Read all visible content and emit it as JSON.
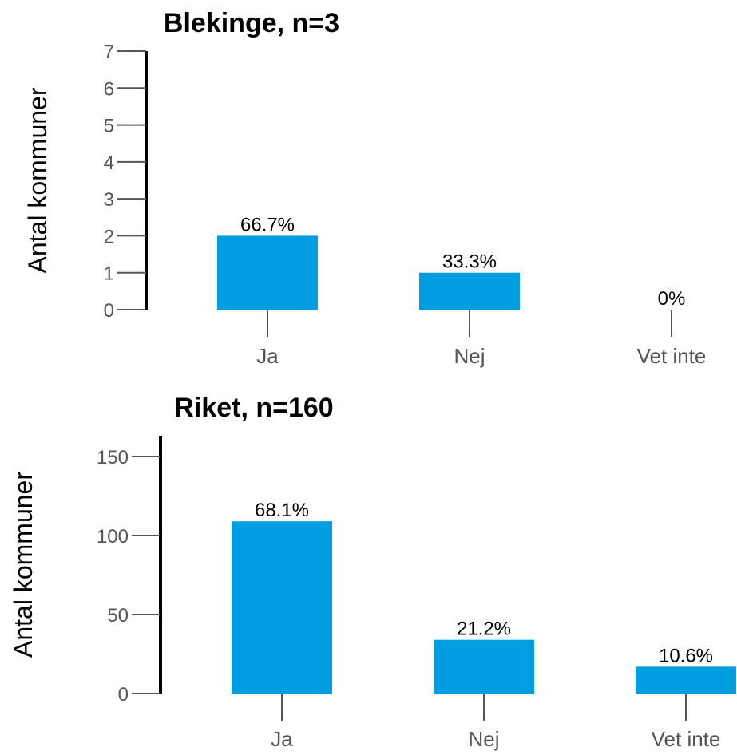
{
  "chart_data": [
    {
      "type": "bar",
      "title": "Blekinge, n=3",
      "ylabel": "Antal kommuner",
      "xlabel": "",
      "categories": [
        "Ja",
        "Nej",
        "Vet inte"
      ],
      "values": [
        2,
        1,
        0
      ],
      "data_labels": [
        "66.7%",
        "33.3%",
        "0%"
      ],
      "ylim": [
        0,
        7
      ],
      "yticks": [
        0,
        1,
        2,
        3,
        4,
        5,
        6,
        7
      ],
      "grid": false,
      "bar_color": "#009ee0"
    },
    {
      "type": "bar",
      "title": "Riket, n=160",
      "ylabel": "Antal kommuner",
      "xlabel": "",
      "categories": [
        "Ja",
        "Nej",
        "Vet inte"
      ],
      "values": [
        109,
        34,
        17
      ],
      "data_labels": [
        "68.1%",
        "21.2%",
        "10.6%"
      ],
      "ylim": [
        0,
        160
      ],
      "yticks": [
        0,
        50,
        100,
        150
      ],
      "grid": false,
      "bar_color": "#009ee0"
    }
  ]
}
